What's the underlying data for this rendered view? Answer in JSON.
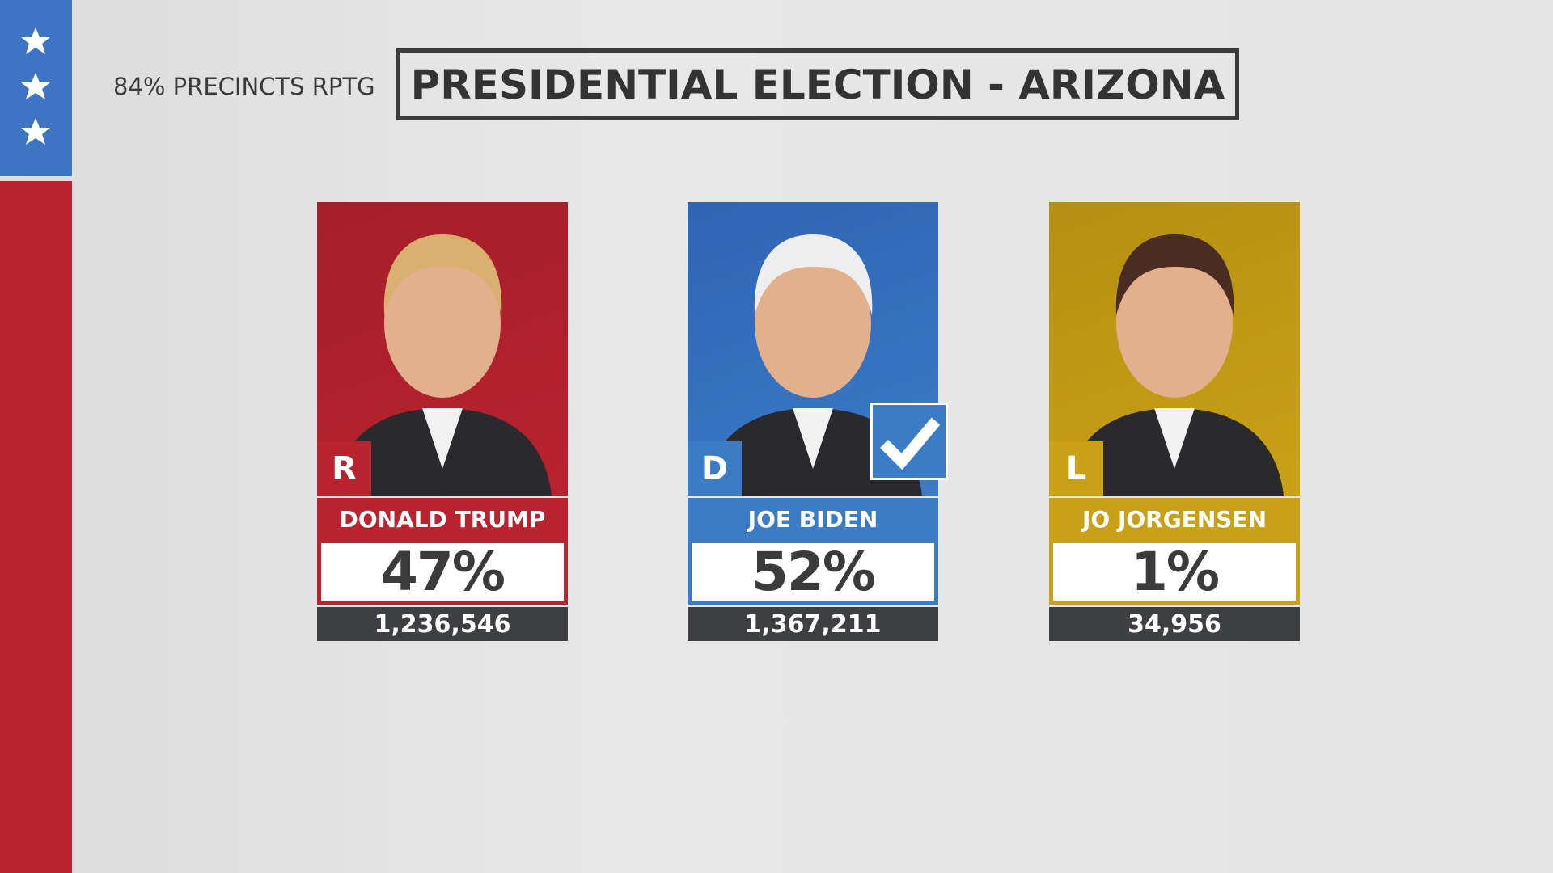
{
  "header": {
    "precincts": "84% PRECINCTS RPTG",
    "title": "PRESIDENTIAL ELECTION - ARIZONA"
  },
  "candidates": [
    {
      "name": "DONALD TRUMP",
      "party": "R",
      "percent": "47%",
      "votes": "1,236,546",
      "color": "#b8232f",
      "photo_bg": "#a51f2a",
      "winner": false
    },
    {
      "name": "JOE BIDEN",
      "party": "D",
      "percent": "52%",
      "votes": "1,367,211",
      "color": "#3b7cc7",
      "photo_bg": "#2f64b3",
      "winner": true
    },
    {
      "name": "JO JORGENSEN",
      "party": "L",
      "percent": "1%",
      "votes": "34,956",
      "color": "#c9a117",
      "photo_bg": "#b58f12",
      "winner": false
    }
  ]
}
